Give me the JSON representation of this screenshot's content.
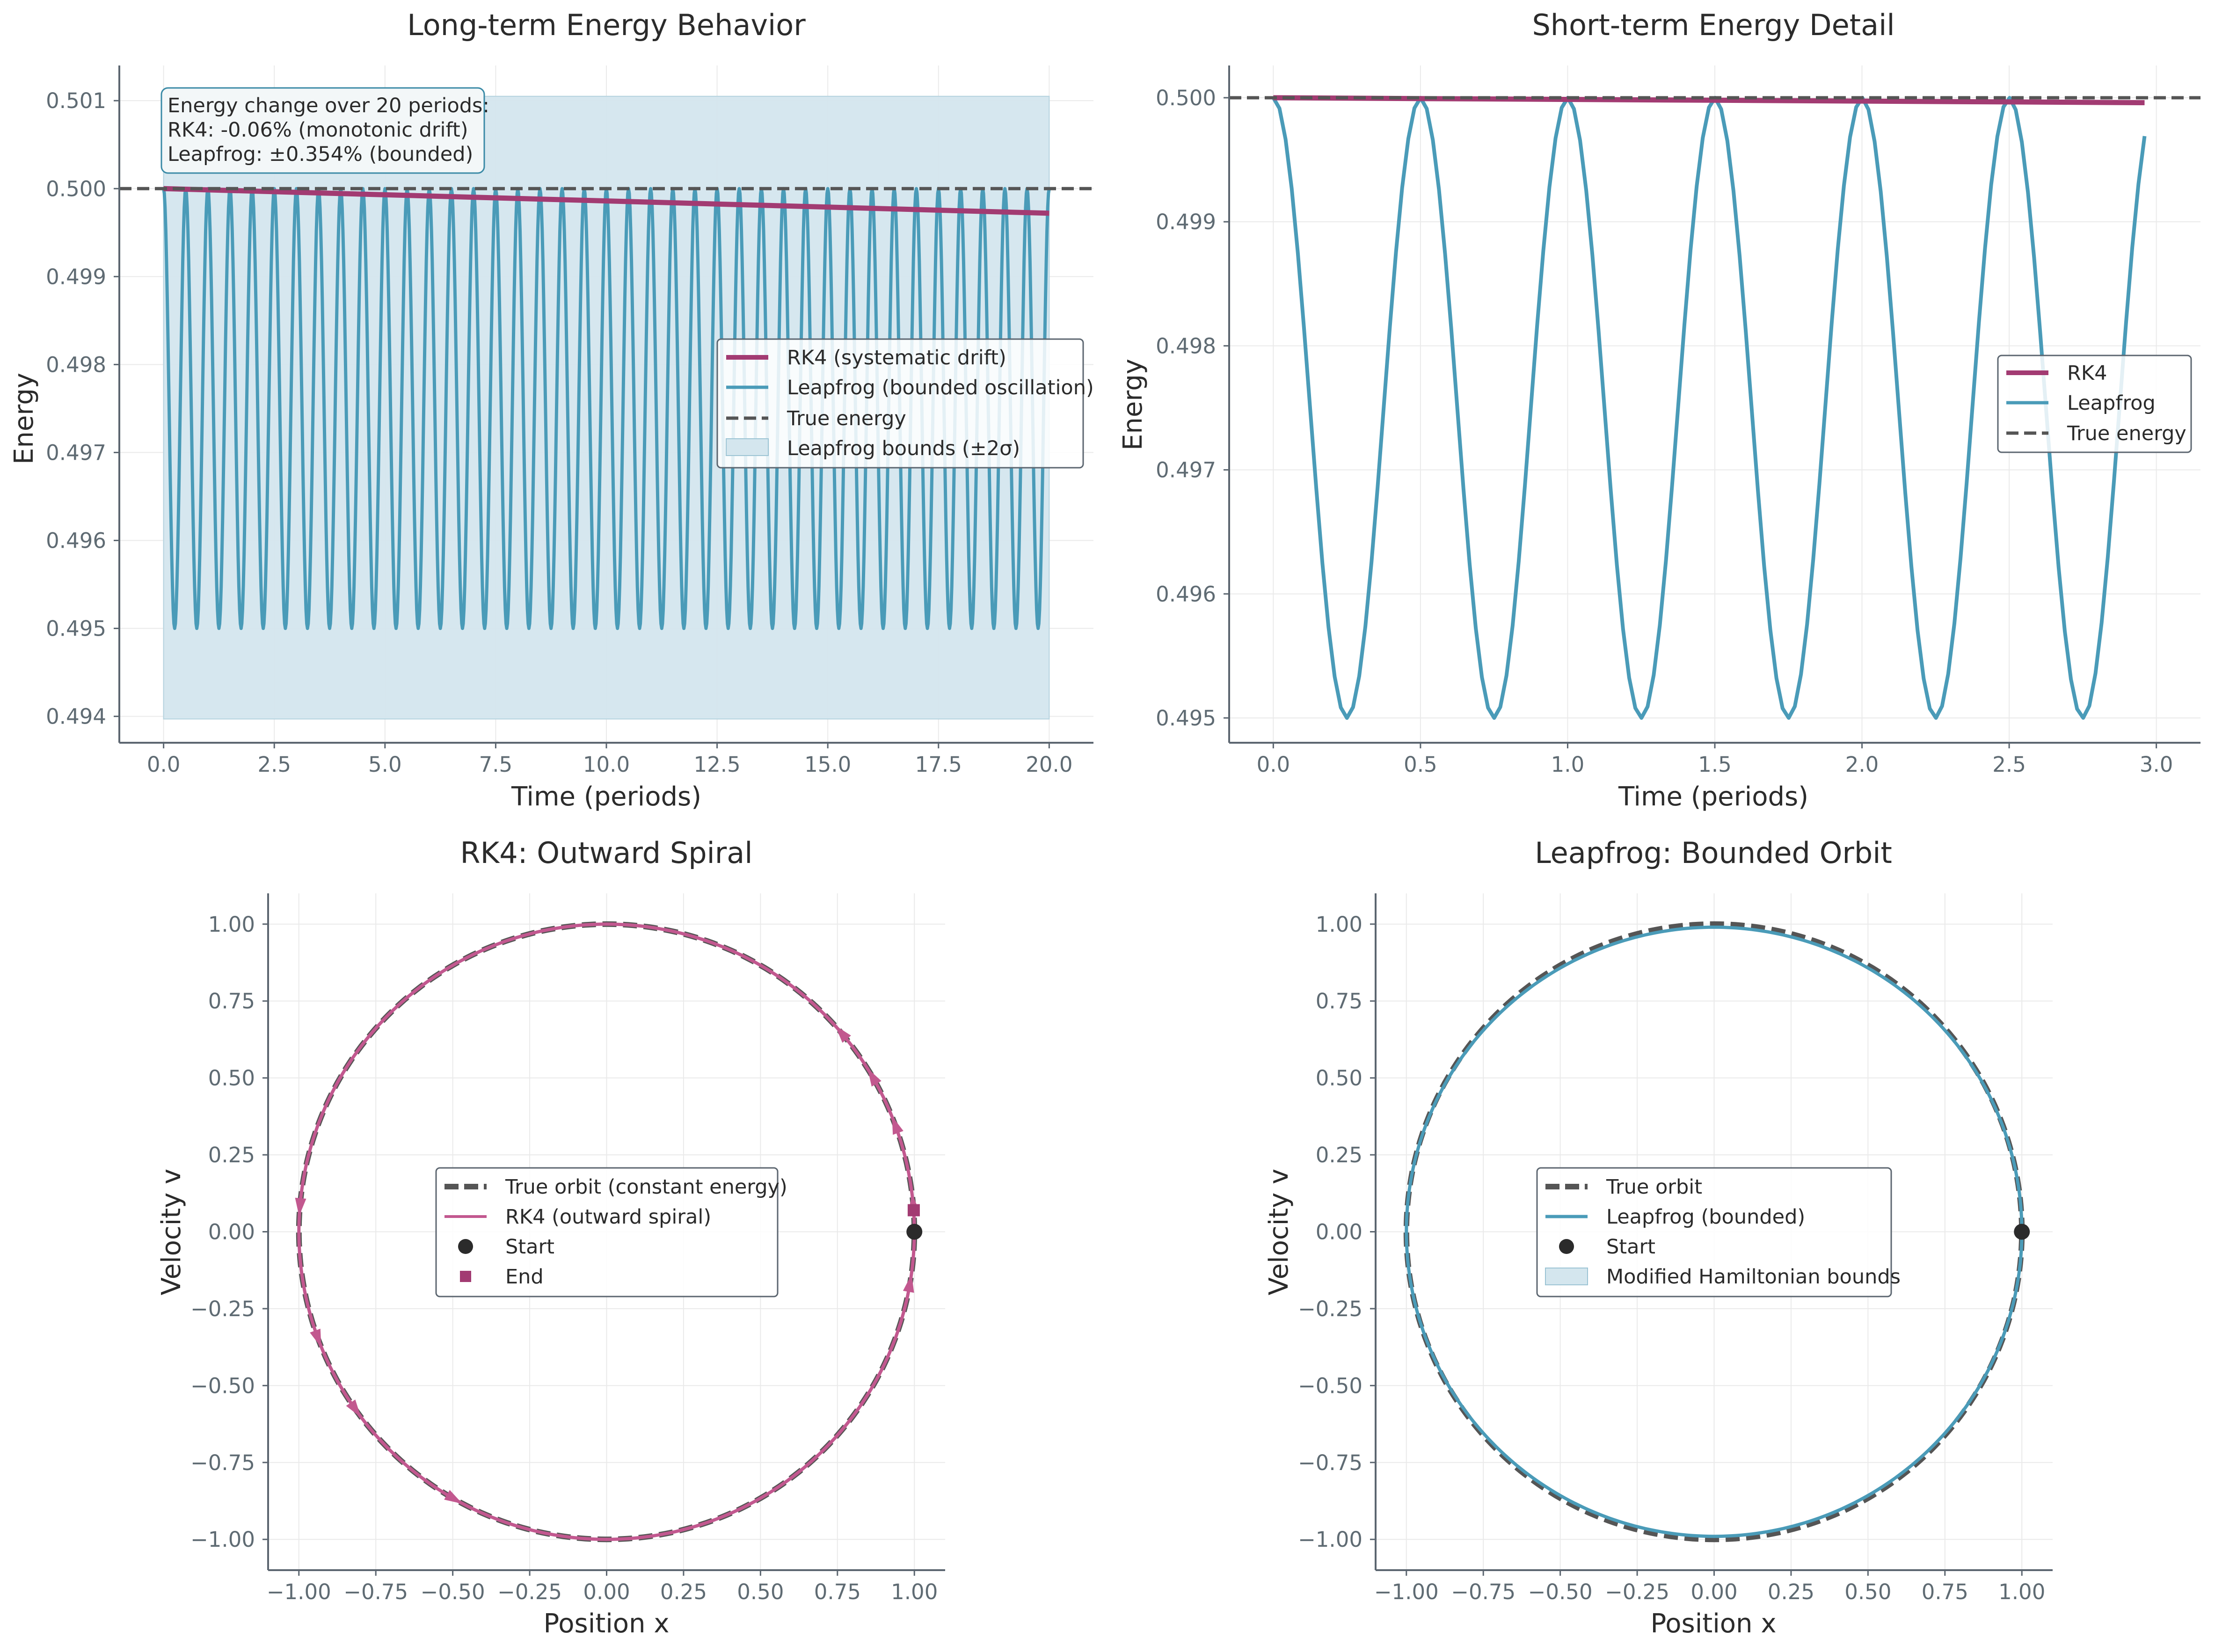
{
  "colors": {
    "rk4": "#a23b72",
    "rk4_light": "#c2588f",
    "leapfrog": "#4a9bb8",
    "true": "#555555",
    "band": "#d4e6ee",
    "axis": "#5c6670",
    "grid": "#eaeaea",
    "start": "#2b2b2b"
  },
  "chart_data": [
    {
      "id": "p1",
      "type": "line",
      "title": "Long-term Energy Behavior",
      "xlabel": "Time (periods)",
      "ylabel": "Energy",
      "xlim": [
        -1.0,
        21.0
      ],
      "ylim": [
        0.4937,
        0.5014
      ],
      "xticks": [
        0,
        2.5,
        5,
        7.5,
        10,
        12.5,
        15,
        17.5,
        20
      ],
      "xtick_labels": [
        "0.0",
        "2.5",
        "5.0",
        "7.5",
        "10.0",
        "12.5",
        "15.0",
        "17.5",
        "20.0"
      ],
      "yticks": [
        0.494,
        0.495,
        0.496,
        0.497,
        0.498,
        0.499,
        0.5,
        0.501
      ],
      "ytick_labels": [
        "0.494",
        "0.495",
        "0.496",
        "0.497",
        "0.498",
        "0.499",
        "0.500",
        "0.501"
      ],
      "series": [
        {
          "name": "RK4 (systematic drift)",
          "kind": "linear",
          "x": [
            0,
            20
          ],
          "y": [
            0.5,
            0.49972
          ]
        },
        {
          "name": "Leapfrog (bounded oscillation)",
          "kind": "oscillation",
          "x_range": [
            0,
            20
          ],
          "center": 0.4975,
          "amplitude": 0.0025,
          "period": 0.5
        }
      ],
      "true_energy": 0.5,
      "band": {
        "label": "Leapfrog bounds (±2σ)",
        "x": [
          0,
          20
        ],
        "y": [
          0.49397,
          0.50105
        ]
      },
      "legend": [
        "RK4 (systematic drift)",
        "Leapfrog (bounded oscillation)",
        "True energy",
        "Leapfrog bounds (±2σ)"
      ],
      "legend_loc": "center-right",
      "annotation": [
        "Energy change over 20 periods:",
        "RK4: -0.06% (monotonic drift)",
        "Leapfrog: ±0.354% (bounded)"
      ]
    },
    {
      "id": "p2",
      "type": "line",
      "title": "Short-term Energy Detail",
      "xlabel": "Time (periods)",
      "ylabel": "Energy",
      "xlim": [
        -0.15,
        3.15
      ],
      "ylim": [
        0.4948,
        0.50026
      ],
      "xticks": [
        0,
        0.5,
        1,
        1.5,
        2,
        2.5,
        3
      ],
      "xtick_labels": [
        "0.0",
        "0.5",
        "1.0",
        "1.5",
        "2.0",
        "2.5",
        "3.0"
      ],
      "yticks": [
        0.495,
        0.496,
        0.497,
        0.498,
        0.499,
        0.5
      ],
      "ytick_labels": [
        "0.495",
        "0.496",
        "0.497",
        "0.498",
        "0.499",
        "0.500"
      ],
      "series": [
        {
          "name": "RK4",
          "kind": "linear",
          "x": [
            0,
            2.96
          ],
          "y": [
            0.5,
            0.49996
          ]
        },
        {
          "name": "Leapfrog",
          "kind": "oscillation",
          "x_range": [
            0,
            2.96
          ],
          "center": 0.4975,
          "amplitude": 0.0025,
          "period": 0.5
        }
      ],
      "true_energy": 0.5,
      "legend": [
        "RK4",
        "Leapfrog",
        "True energy"
      ],
      "legend_loc": "center-right"
    },
    {
      "id": "p3",
      "type": "line",
      "title": "RK4: Outward Spiral",
      "xlabel": "Position x",
      "ylabel": "Velocity v",
      "xlim": [
        -1.1,
        1.1
      ],
      "ylim": [
        -1.1,
        1.1
      ],
      "xticks": [
        -1,
        -0.75,
        -0.5,
        -0.25,
        0,
        0.25,
        0.5,
        0.75,
        1
      ],
      "xtick_labels": [
        "−1.00",
        "−0.75",
        "−0.50",
        "−0.25",
        "0.00",
        "0.25",
        "0.50",
        "0.75",
        "1.00"
      ],
      "yticks": [
        -1,
        -0.75,
        -0.5,
        -0.25,
        0,
        0.25,
        0.5,
        0.75,
        1
      ],
      "ytick_labels": [
        "−1.00",
        "−0.75",
        "−0.50",
        "−0.25",
        "0.00",
        "0.25",
        "0.50",
        "0.75",
        "1.00"
      ],
      "series": [
        {
          "name": "True orbit (constant energy)",
          "kind": "circle",
          "radius": 1.0
        },
        {
          "name": "RK4 (outward spiral)",
          "kind": "circle",
          "radius": 1.0
        }
      ],
      "start": [
        1.0,
        0.0
      ],
      "end": [
        0.998,
        0.07
      ],
      "arrow_angles_deg": [
        5,
        -10,
        20,
        30,
        40,
        175,
        200,
        215,
        240
      ],
      "legend": [
        "True orbit (constant energy)",
        "RK4 (outward spiral)",
        "Start",
        "End"
      ],
      "legend_loc": "center"
    },
    {
      "id": "p4",
      "type": "line",
      "title": "Leapfrog: Bounded Orbit",
      "xlabel": "Position x",
      "ylabel": "Velocity v",
      "xlim": [
        -1.1,
        1.1
      ],
      "ylim": [
        -1.1,
        1.1
      ],
      "xticks": [
        -1,
        -0.75,
        -0.5,
        -0.25,
        0,
        0.25,
        0.5,
        0.75,
        1
      ],
      "xtick_labels": [
        "−1.00",
        "−0.75",
        "−0.50",
        "−0.25",
        "0.00",
        "0.25",
        "0.50",
        "0.75",
        "1.00"
      ],
      "yticks": [
        -1,
        -0.75,
        -0.5,
        -0.25,
        0,
        0.25,
        0.5,
        0.75,
        1
      ],
      "ytick_labels": [
        "−1.00",
        "−0.75",
        "−0.50",
        "−0.25",
        "0.00",
        "0.25",
        "0.50",
        "0.75",
        "1.00"
      ],
      "series": [
        {
          "name": "True orbit",
          "kind": "circle",
          "radius": 1.0
        },
        {
          "name": "Leapfrog (bounded)",
          "kind": "ellipse",
          "rx": 1.0,
          "ry": 0.99
        }
      ],
      "start": [
        1.0,
        0.0
      ],
      "legend": [
        "True orbit",
        "Leapfrog (bounded)",
        "Start",
        "Modified Hamiltonian bounds"
      ],
      "legend_loc": "center"
    }
  ]
}
